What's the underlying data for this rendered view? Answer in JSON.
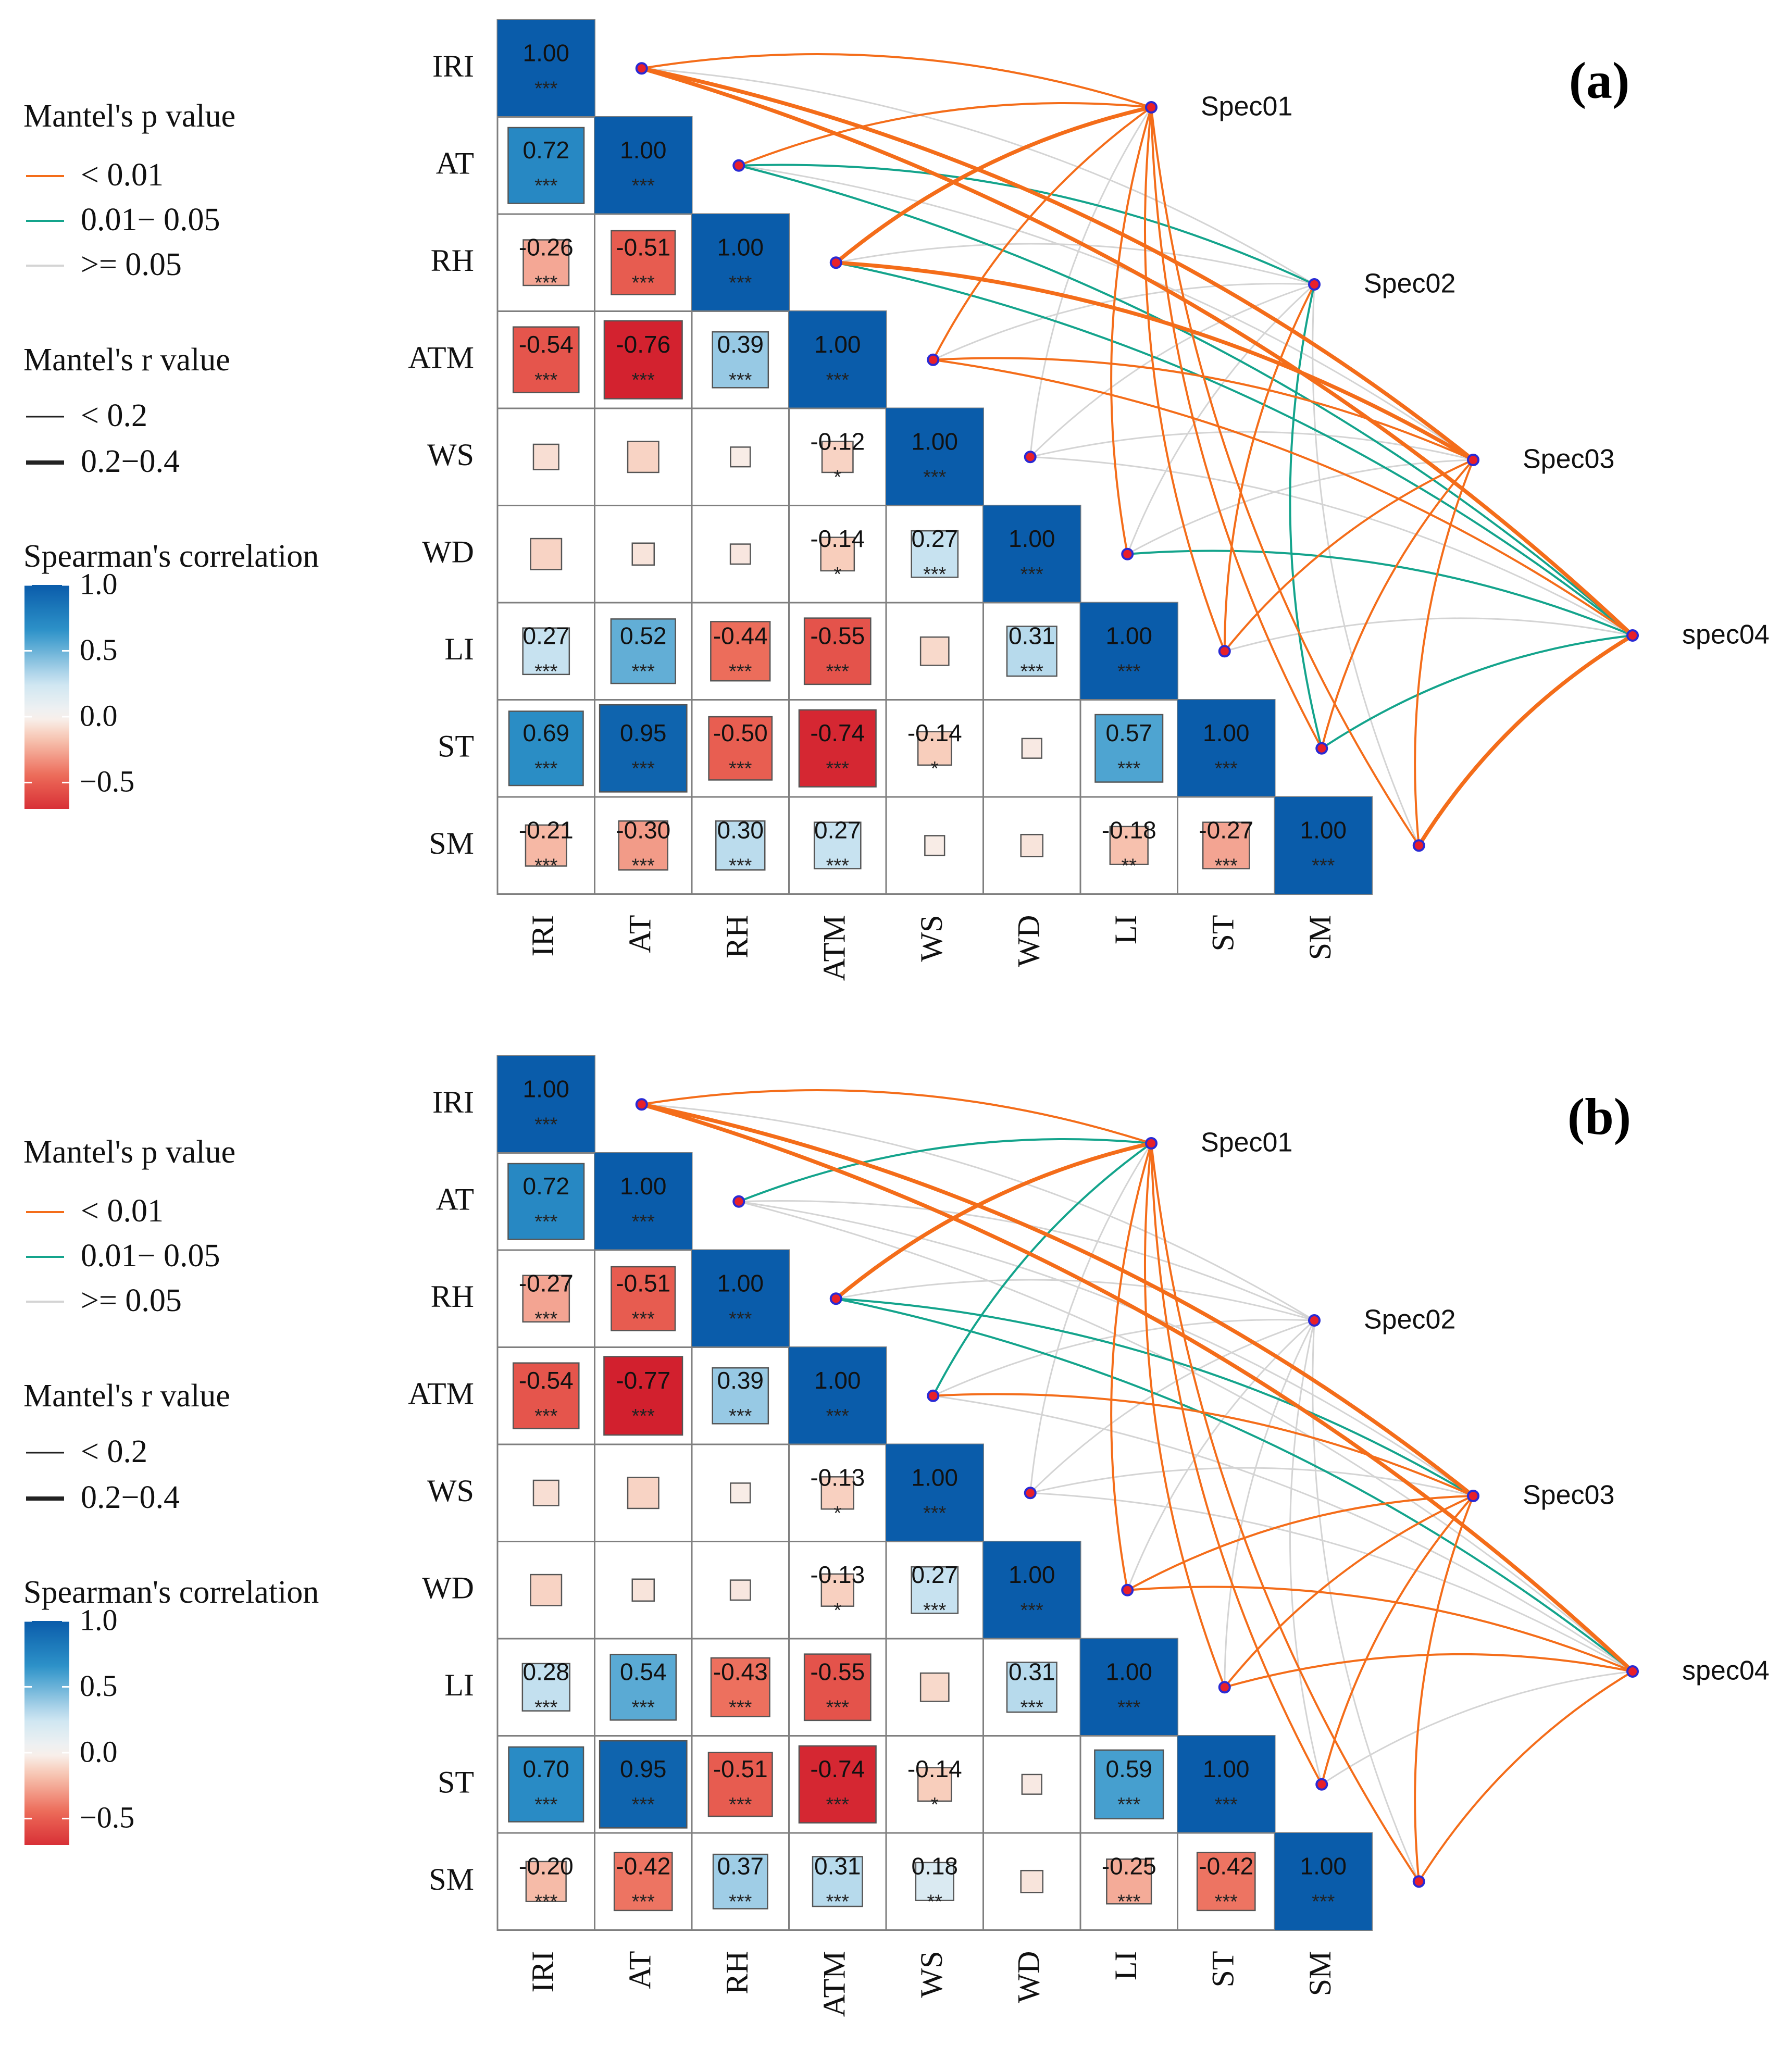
{
  "chart_data": [
    {
      "type": "heatmap",
      "panel_label": "(a)",
      "variables": [
        "IRI",
        "AT",
        "RH",
        "ATM",
        "WS",
        "WD",
        "LI",
        "ST",
        "SM"
      ],
      "correlations": [
        [
          1.0,
          null,
          null,
          null,
          null,
          null,
          null,
          null,
          null
        ],
        [
          0.72,
          1.0,
          null,
          null,
          null,
          null,
          null,
          null,
          null
        ],
        [
          -0.26,
          -0.51,
          1.0,
          null,
          null,
          null,
          null,
          null,
          null
        ],
        [
          -0.54,
          -0.76,
          0.39,
          1.0,
          null,
          null,
          null,
          null,
          null
        ],
        [
          -0.08,
          -0.12,
          -0.03,
          -0.12,
          1.0,
          null,
          null,
          null,
          null
        ],
        [
          -0.12,
          -0.06,
          -0.05,
          -0.14,
          0.27,
          1.0,
          null,
          null,
          null
        ],
        [
          0.27,
          0.52,
          -0.44,
          -0.55,
          -0.1,
          0.31,
          1.0,
          null,
          null
        ],
        [
          0.69,
          0.95,
          -0.5,
          -0.74,
          -0.14,
          -0.04,
          0.57,
          1.0,
          null
        ],
        [
          -0.21,
          -0.3,
          0.3,
          0.27,
          -0.03,
          -0.06,
          -0.18,
          -0.27,
          1.0
        ]
      ],
      "labels": [
        [
          "1.00"
        ],
        [
          "0.72",
          "1.00"
        ],
        [
          "-0.26",
          "-0.51",
          "1.00"
        ],
        [
          "-0.54",
          "-0.76",
          "0.39",
          "1.00"
        ],
        [
          "",
          "",
          "",
          "-0.12",
          "1.00"
        ],
        [
          "",
          "",
          "",
          "-0.14",
          "0.27",
          "1.00"
        ],
        [
          "0.27",
          "0.52",
          "-0.44",
          "-0.55",
          "",
          "0.31",
          "1.00"
        ],
        [
          "0.69",
          "0.95",
          "-0.50",
          "-0.74",
          "-0.14",
          "",
          "0.57",
          "1.00"
        ],
        [
          "-0.21",
          "-0.30",
          "0.30",
          "0.27",
          "",
          "",
          "-0.18",
          "-0.27",
          "1.00"
        ]
      ],
      "stars": [
        [
          "***"
        ],
        [
          "***",
          "***"
        ],
        [
          "***",
          "***",
          "***"
        ],
        [
          "***",
          "***",
          "***",
          "***"
        ],
        [
          "",
          "",
          "",
          "*",
          "***"
        ],
        [
          "",
          "",
          "",
          "*",
          "***",
          "***"
        ],
        [
          "***",
          "***",
          "***",
          "***",
          "",
          "***",
          "***"
        ],
        [
          "***",
          "***",
          "***",
          "***",
          "*",
          "",
          "***",
          "***"
        ],
        [
          "***",
          "***",
          "***",
          "***",
          "",
          "",
          "**",
          "***",
          "***"
        ]
      ],
      "specs": [
        "Spec01",
        "Spec02",
        "Spec03",
        "spec04"
      ],
      "mantel_links": [
        {
          "spec": 0,
          "var": 0,
          "p": "lt0.01",
          "r": "lt0.2"
        },
        {
          "spec": 0,
          "var": 1,
          "p": "lt0.01",
          "r": "lt0.2"
        },
        {
          "spec": 0,
          "var": 2,
          "p": "lt0.01",
          "r": "0.2-0.4"
        },
        {
          "spec": 0,
          "var": 3,
          "p": "lt0.01",
          "r": "lt0.2"
        },
        {
          "spec": 0,
          "var": 4,
          "p": "ge0.05",
          "r": "lt0.2"
        },
        {
          "spec": 0,
          "var": 5,
          "p": "lt0.01",
          "r": "lt0.2"
        },
        {
          "spec": 0,
          "var": 6,
          "p": "lt0.01",
          "r": "lt0.2"
        },
        {
          "spec": 0,
          "var": 7,
          "p": "lt0.01",
          "r": "lt0.2"
        },
        {
          "spec": 0,
          "var": 8,
          "p": "lt0.01",
          "r": "lt0.2"
        },
        {
          "spec": 1,
          "var": 0,
          "p": "ge0.05",
          "r": "lt0.2"
        },
        {
          "spec": 1,
          "var": 1,
          "p": "0.01-0.05",
          "r": "lt0.2"
        },
        {
          "spec": 1,
          "var": 2,
          "p": "ge0.05",
          "r": "lt0.2"
        },
        {
          "spec": 1,
          "var": 3,
          "p": "ge0.05",
          "r": "lt0.2"
        },
        {
          "spec": 1,
          "var": 4,
          "p": "ge0.05",
          "r": "lt0.2"
        },
        {
          "spec": 1,
          "var": 5,
          "p": "ge0.05",
          "r": "lt0.2"
        },
        {
          "spec": 1,
          "var": 6,
          "p": "lt0.01",
          "r": "lt0.2"
        },
        {
          "spec": 1,
          "var": 7,
          "p": "0.01-0.05",
          "r": "lt0.2"
        },
        {
          "spec": 1,
          "var": 8,
          "p": "ge0.05",
          "r": "lt0.2"
        },
        {
          "spec": 2,
          "var": 0,
          "p": "lt0.01",
          "r": "0.2-0.4"
        },
        {
          "spec": 2,
          "var": 1,
          "p": "ge0.05",
          "r": "lt0.2"
        },
        {
          "spec": 2,
          "var": 2,
          "p": "lt0.01",
          "r": "0.2-0.4"
        },
        {
          "spec": 2,
          "var": 3,
          "p": "lt0.01",
          "r": "lt0.2"
        },
        {
          "spec": 2,
          "var": 4,
          "p": "ge0.05",
          "r": "lt0.2"
        },
        {
          "spec": 2,
          "var": 5,
          "p": "ge0.05",
          "r": "lt0.2"
        },
        {
          "spec": 2,
          "var": 6,
          "p": "lt0.01",
          "r": "lt0.2"
        },
        {
          "spec": 2,
          "var": 7,
          "p": "lt0.01",
          "r": "lt0.2"
        },
        {
          "spec": 2,
          "var": 8,
          "p": "lt0.01",
          "r": "lt0.2"
        },
        {
          "spec": 3,
          "var": 0,
          "p": "lt0.01",
          "r": "0.2-0.4"
        },
        {
          "spec": 3,
          "var": 1,
          "p": "0.01-0.05",
          "r": "lt0.2"
        },
        {
          "spec": 3,
          "var": 2,
          "p": "0.01-0.05",
          "r": "lt0.2"
        },
        {
          "spec": 3,
          "var": 3,
          "p": "lt0.01",
          "r": "lt0.2"
        },
        {
          "spec": 3,
          "var": 4,
          "p": "ge0.05",
          "r": "lt0.2"
        },
        {
          "spec": 3,
          "var": 5,
          "p": "0.01-0.05",
          "r": "lt0.2"
        },
        {
          "spec": 3,
          "var": 6,
          "p": "ge0.05",
          "r": "lt0.2"
        },
        {
          "spec": 3,
          "var": 7,
          "p": "0.01-0.05",
          "r": "lt0.2"
        },
        {
          "spec": 3,
          "var": 8,
          "p": "lt0.01",
          "r": "0.2-0.4"
        }
      ]
    },
    {
      "type": "heatmap",
      "panel_label": "(b)",
      "variables": [
        "IRI",
        "AT",
        "RH",
        "ATM",
        "WS",
        "WD",
        "LI",
        "ST",
        "SM"
      ],
      "correlations": [
        [
          1.0,
          null,
          null,
          null,
          null,
          null,
          null,
          null,
          null
        ],
        [
          0.72,
          1.0,
          null,
          null,
          null,
          null,
          null,
          null,
          null
        ],
        [
          -0.27,
          -0.51,
          1.0,
          null,
          null,
          null,
          null,
          null,
          null
        ],
        [
          -0.54,
          -0.77,
          0.39,
          1.0,
          null,
          null,
          null,
          null,
          null
        ],
        [
          -0.08,
          -0.12,
          -0.03,
          -0.13,
          1.0,
          null,
          null,
          null,
          null
        ],
        [
          -0.12,
          -0.06,
          -0.05,
          -0.13,
          0.27,
          1.0,
          null,
          null,
          null
        ],
        [
          0.28,
          0.54,
          -0.43,
          -0.55,
          -0.1,
          0.31,
          1.0,
          null,
          null
        ],
        [
          0.7,
          0.95,
          -0.51,
          -0.74,
          -0.14,
          -0.04,
          0.59,
          1.0,
          null
        ],
        [
          -0.2,
          -0.42,
          0.37,
          0.31,
          0.18,
          -0.06,
          -0.25,
          -0.42,
          1.0
        ]
      ],
      "labels": [
        [
          "1.00"
        ],
        [
          "0.72",
          "1.00"
        ],
        [
          "-0.27",
          "-0.51",
          "1.00"
        ],
        [
          "-0.54",
          "-0.77",
          "0.39",
          "1.00"
        ],
        [
          "",
          "",
          "",
          "-0.13",
          "1.00"
        ],
        [
          "",
          "",
          "",
          "-0.13",
          "0.27",
          "1.00"
        ],
        [
          "0.28",
          "0.54",
          "-0.43",
          "-0.55",
          "",
          "0.31",
          "1.00"
        ],
        [
          "0.70",
          "0.95",
          "-0.51",
          "-0.74",
          "-0.14",
          "",
          "0.59",
          "1.00"
        ],
        [
          "-0.20",
          "-0.42",
          "0.37",
          "0.31",
          "0.18",
          "",
          "-0.25",
          "-0.42",
          "1.00"
        ]
      ],
      "stars": [
        [
          "***"
        ],
        [
          "***",
          "***"
        ],
        [
          "***",
          "***",
          "***"
        ],
        [
          "***",
          "***",
          "***",
          "***"
        ],
        [
          "",
          "",
          "",
          "*",
          "***"
        ],
        [
          "",
          "",
          "",
          "*",
          "***",
          "***"
        ],
        [
          "***",
          "***",
          "***",
          "***",
          "",
          "***",
          "***"
        ],
        [
          "***",
          "***",
          "***",
          "***",
          "*",
          "",
          "***",
          "***"
        ],
        [
          "***",
          "***",
          "***",
          "***",
          "**",
          "",
          "***",
          "***",
          "***"
        ]
      ],
      "specs": [
        "Spec01",
        "Spec02",
        "Spec03",
        "spec04"
      ],
      "mantel_links": [
        {
          "spec": 0,
          "var": 0,
          "p": "lt0.01",
          "r": "lt0.2"
        },
        {
          "spec": 0,
          "var": 1,
          "p": "0.01-0.05",
          "r": "lt0.2"
        },
        {
          "spec": 0,
          "var": 2,
          "p": "lt0.01",
          "r": "0.2-0.4"
        },
        {
          "spec": 0,
          "var": 3,
          "p": "0.01-0.05",
          "r": "lt0.2"
        },
        {
          "spec": 0,
          "var": 4,
          "p": "ge0.05",
          "r": "lt0.2"
        },
        {
          "spec": 0,
          "var": 5,
          "p": "lt0.01",
          "r": "lt0.2"
        },
        {
          "spec": 0,
          "var": 6,
          "p": "lt0.01",
          "r": "lt0.2"
        },
        {
          "spec": 0,
          "var": 7,
          "p": "lt0.01",
          "r": "lt0.2"
        },
        {
          "spec": 0,
          "var": 8,
          "p": "lt0.01",
          "r": "lt0.2"
        },
        {
          "spec": 1,
          "var": 0,
          "p": "ge0.05",
          "r": "lt0.2"
        },
        {
          "spec": 1,
          "var": 1,
          "p": "ge0.05",
          "r": "lt0.2"
        },
        {
          "spec": 1,
          "var": 2,
          "p": "ge0.05",
          "r": "lt0.2"
        },
        {
          "spec": 1,
          "var": 3,
          "p": "ge0.05",
          "r": "lt0.2"
        },
        {
          "spec": 1,
          "var": 4,
          "p": "ge0.05",
          "r": "lt0.2"
        },
        {
          "spec": 1,
          "var": 5,
          "p": "ge0.05",
          "r": "lt0.2"
        },
        {
          "spec": 1,
          "var": 6,
          "p": "ge0.05",
          "r": "lt0.2"
        },
        {
          "spec": 1,
          "var": 7,
          "p": "ge0.05",
          "r": "lt0.2"
        },
        {
          "spec": 1,
          "var": 8,
          "p": "ge0.05",
          "r": "lt0.2"
        },
        {
          "spec": 2,
          "var": 0,
          "p": "lt0.01",
          "r": "0.2-0.4"
        },
        {
          "spec": 2,
          "var": 1,
          "p": "ge0.05",
          "r": "lt0.2"
        },
        {
          "spec": 2,
          "var": 2,
          "p": "0.01-0.05",
          "r": "lt0.2"
        },
        {
          "spec": 2,
          "var": 3,
          "p": "lt0.01",
          "r": "lt0.2"
        },
        {
          "spec": 2,
          "var": 4,
          "p": "ge0.05",
          "r": "lt0.2"
        },
        {
          "spec": 2,
          "var": 5,
          "p": "lt0.01",
          "r": "lt0.2"
        },
        {
          "spec": 2,
          "var": 6,
          "p": "lt0.01",
          "r": "lt0.2"
        },
        {
          "spec": 2,
          "var": 7,
          "p": "lt0.01",
          "r": "lt0.2"
        },
        {
          "spec": 2,
          "var": 8,
          "p": "lt0.01",
          "r": "lt0.2"
        },
        {
          "spec": 3,
          "var": 0,
          "p": "lt0.01",
          "r": "0.2-0.4"
        },
        {
          "spec": 3,
          "var": 1,
          "p": "ge0.05",
          "r": "lt0.2"
        },
        {
          "spec": 3,
          "var": 2,
          "p": "0.01-0.05",
          "r": "lt0.2"
        },
        {
          "spec": 3,
          "var": 3,
          "p": "ge0.05",
          "r": "lt0.2"
        },
        {
          "spec": 3,
          "var": 4,
          "p": "ge0.05",
          "r": "lt0.2"
        },
        {
          "spec": 3,
          "var": 5,
          "p": "lt0.01",
          "r": "lt0.2"
        },
        {
          "spec": 3,
          "var": 6,
          "p": "lt0.01",
          "r": "lt0.2"
        },
        {
          "spec": 3,
          "var": 7,
          "p": "ge0.05",
          "r": "lt0.2"
        },
        {
          "spec": 3,
          "var": 8,
          "p": "lt0.01",
          "r": "lt0.2"
        }
      ]
    }
  ],
  "legend": {
    "p_title": "Mantel's p value",
    "p_items": [
      {
        "key": "lt0.01",
        "label": "< 0.01",
        "color": "#F46D1A"
      },
      {
        "key": "0.01-0.05",
        "label": "0.01− 0.05",
        "color": "#14A48C"
      },
      {
        "key": "ge0.05",
        "label": ">= 0.05",
        "color": "#D4D4D4"
      }
    ],
    "r_title": "Mantel's r value",
    "r_items": [
      {
        "key": "lt0.2",
        "label": "< 0.2"
      },
      {
        "key": "0.2-0.4",
        "label": "0.2−0.4"
      }
    ],
    "scale_title": "Spearman's correlation",
    "scale_ticks": [
      {
        "value": 1.0,
        "label": "1.0"
      },
      {
        "value": 0.5,
        "label": "0.5"
      },
      {
        "value": 0.0,
        "label": "0.0"
      },
      {
        "value": -0.5,
        "label": "−0.5"
      }
    ],
    "scale_min": -0.7,
    "scale_max": 1.0
  },
  "colors": {
    "background": "#ffffff",
    "grid": "#7f7f7f",
    "node_fill": "#E8202A",
    "node_stroke": "#2A2AD4",
    "positive_strong": "#0A5CAA",
    "positive_mid": "#2E93C9",
    "positive_weak": "#CFE6F2",
    "zero": "#F8F4F2",
    "negative_weak": "#F8CBB8",
    "negative_mid": "#EC6A58",
    "negative_strong": "#D0192A"
  }
}
